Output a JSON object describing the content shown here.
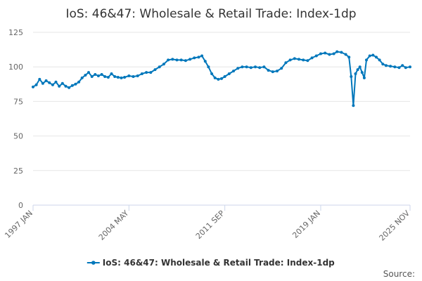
{
  "chart_data": {
    "type": "line",
    "title": "IoS: 46&47: Wholesale & Retail Trade: Index-1dp",
    "xlabel": "",
    "ylabel": "",
    "ylim": [
      0,
      125
    ],
    "y_ticks": [
      "0",
      "25",
      "50",
      "75",
      "100",
      "125"
    ],
    "x_ticks": [
      {
        "label": "1997 JAN",
        "date": "1997-01"
      },
      {
        "label": "2004 MAY",
        "date": "2004-05"
      },
      {
        "label": "2011 SEP",
        "date": "2011-09"
      },
      {
        "label": "2019 JAN",
        "date": "2019-01"
      },
      {
        "label": "2025 NOV",
        "date": "2025-11"
      }
    ],
    "x_range": [
      "1997-01",
      "2025-11"
    ],
    "grid": "horizontal",
    "legend_position": "bottom-center",
    "series": [
      {
        "name": "IoS: 46&47: Wholesale & Retail Trade: Index-1dp",
        "color": "#0077bb",
        "points": [
          [
            "1997-01",
            85.5
          ],
          [
            "1997-04",
            87.0
          ],
          [
            "1997-07",
            91.0
          ],
          [
            "1997-10",
            88.0
          ],
          [
            "1998-01",
            90.0
          ],
          [
            "1998-04",
            88.5
          ],
          [
            "1998-07",
            87.0
          ],
          [
            "1998-10",
            89.0
          ],
          [
            "1999-01",
            86.0
          ],
          [
            "1999-04",
            88.0
          ],
          [
            "1999-07",
            86.0
          ],
          [
            "1999-10",
            85.0
          ],
          [
            "2000-01",
            86.5
          ],
          [
            "2000-04",
            87.5
          ],
          [
            "2000-07",
            89.0
          ],
          [
            "2000-10",
            92.0
          ],
          [
            "2001-01",
            94.0
          ],
          [
            "2001-04",
            96.0
          ],
          [
            "2001-07",
            93.0
          ],
          [
            "2001-10",
            94.5
          ],
          [
            "2002-01",
            93.5
          ],
          [
            "2002-04",
            94.5
          ],
          [
            "2002-07",
            93.0
          ],
          [
            "2002-10",
            92.5
          ],
          [
            "2003-01",
            95.0
          ],
          [
            "2003-04",
            93.0
          ],
          [
            "2003-07",
            92.5
          ],
          [
            "2003-10",
            92.0
          ],
          [
            "2004-01",
            92.5
          ],
          [
            "2004-05",
            93.5
          ],
          [
            "2004-09",
            93.0
          ],
          [
            "2005-01",
            93.5
          ],
          [
            "2005-05",
            95.0
          ],
          [
            "2005-09",
            96.0
          ],
          [
            "2006-01",
            96.0
          ],
          [
            "2006-05",
            98.0
          ],
          [
            "2006-09",
            100.0
          ],
          [
            "2007-01",
            102.0
          ],
          [
            "2007-05",
            105.0
          ],
          [
            "2007-09",
            105.5
          ],
          [
            "2008-01",
            105.0
          ],
          [
            "2008-05",
            105.0
          ],
          [
            "2008-09",
            104.5
          ],
          [
            "2009-01",
            105.5
          ],
          [
            "2009-05",
            106.5
          ],
          [
            "2009-09",
            107.0
          ],
          [
            "2009-12",
            108.0
          ],
          [
            "2010-03",
            104.0
          ],
          [
            "2010-06",
            100.0
          ],
          [
            "2010-09",
            95.0
          ],
          [
            "2010-12",
            92.0
          ],
          [
            "2011-03",
            91.0
          ],
          [
            "2011-06",
            91.5
          ],
          [
            "2011-09",
            93.0
          ],
          [
            "2012-01",
            95.0
          ],
          [
            "2012-05",
            97.0
          ],
          [
            "2012-09",
            99.0
          ],
          [
            "2013-01",
            100.0
          ],
          [
            "2013-05",
            100.0
          ],
          [
            "2013-09",
            99.5
          ],
          [
            "2014-01",
            100.0
          ],
          [
            "2014-05",
            99.5
          ],
          [
            "2014-09",
            100.0
          ],
          [
            "2015-01",
            97.5
          ],
          [
            "2015-05",
            96.5
          ],
          [
            "2015-09",
            97.0
          ],
          [
            "2016-01",
            99.0
          ],
          [
            "2016-05",
            103.0
          ],
          [
            "2016-09",
            105.0
          ],
          [
            "2017-01",
            106.0
          ],
          [
            "2017-05",
            105.5
          ],
          [
            "2017-09",
            105.0
          ],
          [
            "2018-01",
            104.5
          ],
          [
            "2018-05",
            106.5
          ],
          [
            "2018-09",
            108.0
          ],
          [
            "2019-01",
            109.5
          ],
          [
            "2019-05",
            110.0
          ],
          [
            "2019-09",
            109.0
          ],
          [
            "2020-01",
            109.5
          ],
          [
            "2020-04",
            111.0
          ],
          [
            "2020-08",
            110.5
          ],
          [
            "2020-12",
            109.0
          ],
          [
            "2021-03",
            107.0
          ],
          [
            "2021-05",
            93.0
          ],
          [
            "2021-07",
            72.0
          ],
          [
            "2021-09",
            95.0
          ],
          [
            "2021-11",
            98.0
          ],
          [
            "2022-01",
            100.0
          ],
          [
            "2022-03",
            96.0
          ],
          [
            "2022-05",
            92.0
          ],
          [
            "2022-07",
            105.0
          ],
          [
            "2022-10",
            108.0
          ],
          [
            "2023-01",
            108.5
          ],
          [
            "2023-04",
            107.0
          ],
          [
            "2023-07",
            105.0
          ],
          [
            "2023-10",
            102.0
          ],
          [
            "2024-01",
            101.0
          ],
          [
            "2024-05",
            100.5
          ],
          [
            "2024-09",
            100.0
          ],
          [
            "2025-01",
            99.5
          ],
          [
            "2025-04",
            101.0
          ],
          [
            "2025-07",
            99.5
          ],
          [
            "2025-11",
            100.0
          ]
        ]
      }
    ],
    "source_label": "Source:"
  }
}
